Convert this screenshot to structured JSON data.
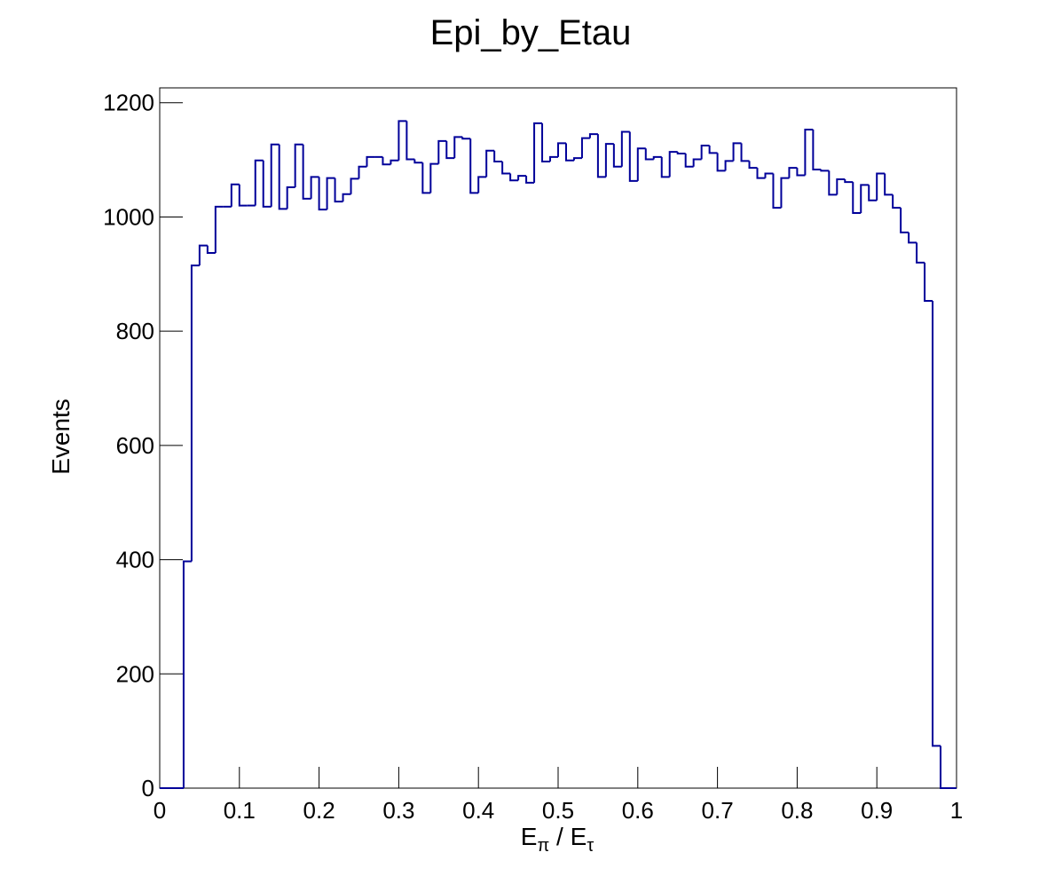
{
  "chart_data": {
    "type": "histogram",
    "title": "Epi_by_Etau",
    "x_label": [
      "E",
      "π",
      " / ",
      "E",
      "τ"
    ],
    "y_label": "Events",
    "color": "#000099",
    "bins": [
      0,
      0.01,
      0.02,
      0.03,
      0.04,
      0.05,
      0.06,
      0.07,
      0.08,
      0.09,
      0.1,
      0.11,
      0.12,
      0.13,
      0.14,
      0.15,
      0.16,
      0.17,
      0.18,
      0.19,
      0.2,
      0.21,
      0.22,
      0.23,
      0.24,
      0.25,
      0.26,
      0.27,
      0.28,
      0.29,
      0.3,
      0.31,
      0.32,
      0.33,
      0.34,
      0.35,
      0.36,
      0.37,
      0.38,
      0.39,
      0.4,
      0.41,
      0.42,
      0.43,
      0.44,
      0.45,
      0.46,
      0.47,
      0.48,
      0.49,
      0.5,
      0.51,
      0.52,
      0.53,
      0.54,
      0.55,
      0.56,
      0.57,
      0.58,
      0.59,
      0.6,
      0.61,
      0.62,
      0.63,
      0.64,
      0.65,
      0.66,
      0.67,
      0.68,
      0.69,
      0.7,
      0.71,
      0.72,
      0.73,
      0.74,
      0.75,
      0.76,
      0.77,
      0.78,
      0.79,
      0.8,
      0.81,
      0.82,
      0.83,
      0.84,
      0.85,
      0.86,
      0.87,
      0.88,
      0.89,
      0.9,
      0.91,
      0.92,
      0.93,
      0.94,
      0.95,
      0.96,
      0.97,
      0.98,
      0.99,
      1
    ],
    "values": [
      0,
      0,
      0,
      397,
      915,
      950,
      937,
      1018,
      1018,
      1057,
      1020,
      1020,
      1099,
      1018,
      1127,
      1014,
      1052,
      1127,
      1032,
      1070,
      1013,
      1068,
      1027,
      1040,
      1067,
      1088,
      1105,
      1105,
      1092,
      1099,
      1168,
      1101,
      1095,
      1042,
      1093,
      1133,
      1103,
      1140,
      1137,
      1042,
      1070,
      1116,
      1097,
      1076,
      1064,
      1072,
      1060,
      1164,
      1097,
      1105,
      1129,
      1099,
      1103,
      1138,
      1145,
      1070,
      1128,
      1088,
      1149,
      1063,
      1120,
      1101,
      1105,
      1070,
      1114,
      1111,
      1088,
      1101,
      1125,
      1112,
      1081,
      1098,
      1129,
      1098,
      1086,
      1068,
      1076,
      1016,
      1068,
      1086,
      1073,
      1153,
      1083,
      1081,
      1039,
      1066,
      1061,
      1007,
      1056,
      1029,
      1076,
      1039,
      1016,
      973,
      955,
      920,
      853,
      74,
      0,
      0
    ],
    "xlim": [
      0,
      1
    ],
    "xticks": [
      0,
      0.1,
      0.2,
      0.3,
      0.4,
      0.5,
      0.6,
      0.7,
      0.8,
      0.9,
      1
    ],
    "ylim": [
      0,
      1226
    ],
    "yticks": [
      0,
      200,
      400,
      600,
      800,
      1000,
      1200
    ]
  }
}
